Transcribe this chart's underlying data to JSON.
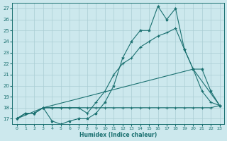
{
  "xlabel": "Humidex (Indice chaleur)",
  "xlim": [
    -0.5,
    23.5
  ],
  "ylim": [
    16.5,
    27.5
  ],
  "yticks": [
    17,
    18,
    19,
    20,
    21,
    22,
    23,
    24,
    25,
    26,
    27
  ],
  "xticks": [
    0,
    1,
    2,
    3,
    4,
    5,
    6,
    7,
    8,
    9,
    10,
    11,
    12,
    13,
    14,
    15,
    16,
    17,
    18,
    19,
    20,
    21,
    22,
    23
  ],
  "bg_color": "#cce8ed",
  "grid_color": "#aacdd4",
  "line_color": "#1a7070",
  "line1_x": [
    0,
    1,
    2,
    3,
    4,
    5,
    6,
    7,
    8,
    9,
    10,
    11,
    12,
    13,
    14,
    15,
    16,
    17,
    18,
    19,
    20,
    21,
    22,
    23
  ],
  "line1_y": [
    17.0,
    17.5,
    17.5,
    18.0,
    16.8,
    16.5,
    16.8,
    17.0,
    17.0,
    17.5,
    18.5,
    20.0,
    22.5,
    24.0,
    25.0,
    25.0,
    27.2,
    26.0,
    27.0,
    23.3,
    21.5,
    21.5,
    19.5,
    18.2
  ],
  "line2_x": [
    0,
    1,
    2,
    3,
    4,
    5,
    6,
    7,
    8,
    9,
    10,
    11,
    12,
    13,
    14,
    15,
    16,
    17,
    18,
    19,
    20,
    21,
    22,
    23
  ],
  "line2_y": [
    17.0,
    17.5,
    17.5,
    18.0,
    18.0,
    18.0,
    18.0,
    18.0,
    17.5,
    18.5,
    19.5,
    21.0,
    22.0,
    22.5,
    23.5,
    24.0,
    24.5,
    24.8,
    25.2,
    23.3,
    21.5,
    19.5,
    18.5,
    18.2
  ],
  "line3_x": [
    0,
    1,
    2,
    3,
    4,
    5,
    6,
    7,
    8,
    9,
    10,
    11,
    12,
    13,
    14,
    15,
    16,
    17,
    18,
    19,
    20,
    21,
    22,
    23
  ],
  "line3_y": [
    17.0,
    17.5,
    17.5,
    18.0,
    18.0,
    18.0,
    18.0,
    18.0,
    18.0,
    18.0,
    18.0,
    18.0,
    18.0,
    18.0,
    18.0,
    18.0,
    18.0,
    18.0,
    18.0,
    18.0,
    18.0,
    18.0,
    18.0,
    18.2
  ],
  "line4_x": [
    0,
    3,
    20,
    23
  ],
  "line4_y": [
    17.0,
    18.0,
    21.5,
    18.2
  ]
}
